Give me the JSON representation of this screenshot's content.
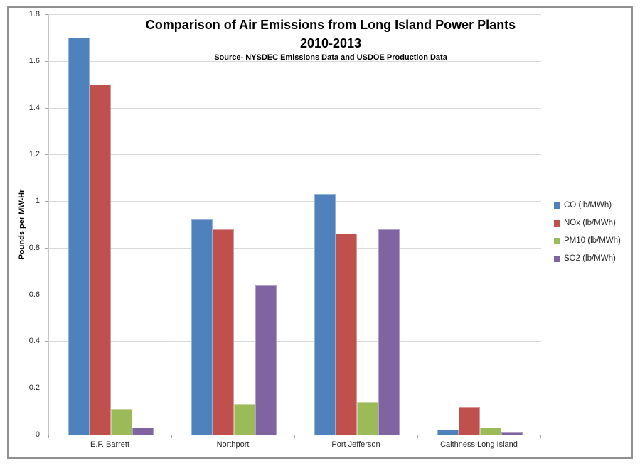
{
  "chart_data": {
    "type": "bar",
    "title_line1": "Comparison of Air Emissions from Long Island Power Plants",
    "title_line2": "2010-2013",
    "subtitle": "Source- NYSDEC Emissions Data and USDOE Production Data",
    "ylabel": "Pounds per MW-Hr",
    "ylim": [
      0,
      1.8
    ],
    "ytick_step": 0.2,
    "yticks": [
      "1.8",
      "1.6",
      "1.4",
      "1.2",
      "1",
      "0.8",
      "0.6",
      "0.4",
      "0.2",
      "0"
    ],
    "grid": true,
    "legend_position": "right",
    "categories": [
      "E.F. Barrett",
      "Northport",
      "Port Jefferson",
      "Caithness Long Island"
    ],
    "series": [
      {
        "name": "CO (lb/MWh)",
        "color": "#4F81BD",
        "border_color": "#95B3D7",
        "values": [
          1.7,
          0.92,
          1.03,
          0.02
        ]
      },
      {
        "name": "NOx (lb/MWh)",
        "color": "#C0504D",
        "border_color": "#D99694",
        "values": [
          1.5,
          0.88,
          0.86,
          0.12
        ]
      },
      {
        "name": "PM10 (lb/MWh)",
        "color": "#9BBB59",
        "border_color": "#C2D69B",
        "values": [
          0.11,
          0.13,
          0.14,
          0.03
        ]
      },
      {
        "name": "SO2 (lb/MWh)",
        "color": "#8064A2",
        "border_color": "#B2A1C7",
        "values": [
          0.03,
          0.64,
          0.88,
          0.01
        ]
      }
    ],
    "colors": {
      "gridline": "#D9D9D9",
      "axis": "#A6A6A6",
      "frame_border": "#909090"
    }
  }
}
